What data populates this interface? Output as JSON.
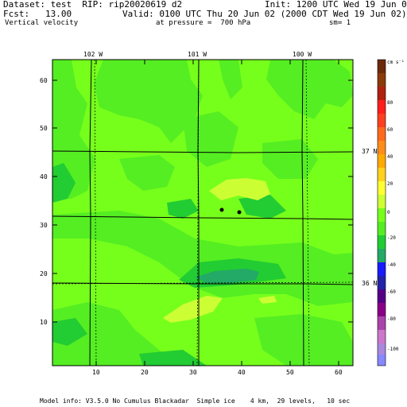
{
  "header": {
    "dataset": "Dataset: test  RIP: rip20020619 d2",
    "init": "Init: 1200 UTC Wed 19 Jun 02",
    "fcst": "Fcst:   13.00",
    "valid": "Valid: 0100 UTC Thu 20 Jun 02 (2000 CDT Wed 19 Jun 02)",
    "field": "Vertical velocity",
    "pressure": "at pressure =  700 hPa",
    "sm": "sm= 1"
  },
  "top_labels": [
    "102 W",
    "101 W",
    "100 W"
  ],
  "right_labels": [
    "37 N",
    "36 N"
  ],
  "y_ticks": [
    "60",
    "50",
    "40",
    "30",
    "20",
    "10"
  ],
  "x_ticks": [
    "10",
    "20",
    "30",
    "40",
    "50",
    "60"
  ],
  "colorbar": {
    "unit": "cm s⁻¹",
    "labels": [
      "80",
      "60",
      "40",
      "20",
      "0",
      "-20",
      "-40",
      "-60",
      "-80",
      "-100"
    ]
  },
  "footer": "Model info: V3.5.0 No Cumulus Blackadar  Simple ice    4 km,  29 levels,   10 sec",
  "colors": {
    "field_base": "#77ff1c",
    "field_light": "#55ee22",
    "field_dark": "#22cc33",
    "field_yellow": "#ccff33",
    "field_teal": "#22aa66"
  }
}
